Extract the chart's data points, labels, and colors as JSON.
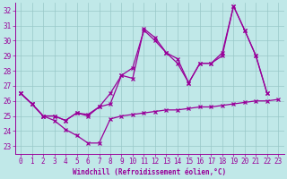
{
  "xlabel": "Windchill (Refroidissement éolien,°C)",
  "background_color": "#c0e8e8",
  "grid_color": "#98c8c8",
  "line_color": "#990099",
  "xlim": [
    -0.5,
    23.5
  ],
  "ylim": [
    22.5,
    32.5
  ],
  "xticks": [
    0,
    1,
    2,
    3,
    4,
    5,
    6,
    7,
    8,
    9,
    10,
    11,
    12,
    13,
    14,
    15,
    16,
    17,
    18,
    19,
    20,
    21,
    22,
    23
  ],
  "yticks": [
    23,
    24,
    25,
    26,
    27,
    28,
    29,
    30,
    31,
    32
  ],
  "series1_x": [
    0,
    1,
    2,
    3,
    4,
    5,
    6,
    7,
    8,
    9,
    10,
    11,
    12,
    13,
    14,
    15,
    16,
    17,
    18,
    19,
    20,
    21,
    22,
    23
  ],
  "series1_y": [
    26.5,
    25.8,
    25.0,
    24.7,
    24.1,
    23.7,
    23.2,
    23.2,
    24.8,
    25.0,
    25.1,
    25.2,
    25.3,
    25.4,
    25.4,
    25.5,
    25.6,
    25.6,
    25.7,
    25.8,
    25.9,
    26.0,
    26.0,
    26.1
  ],
  "series2_x": [
    0,
    1,
    2,
    3,
    4,
    5,
    6,
    7,
    8,
    9,
    10,
    11,
    12,
    13,
    14,
    15,
    16,
    17,
    18,
    19,
    20,
    21,
    22
  ],
  "series2_y": [
    26.5,
    25.8,
    25.0,
    25.0,
    24.7,
    25.2,
    25.0,
    25.6,
    26.5,
    27.7,
    28.2,
    30.7,
    30.0,
    29.2,
    28.5,
    27.2,
    28.5,
    28.5,
    29.0,
    32.3,
    30.7,
    29.0,
    26.5
  ],
  "series3_x": [
    0,
    1,
    2,
    3,
    4,
    5,
    6,
    7,
    8,
    9,
    10,
    11,
    12,
    13,
    14,
    15,
    16,
    17,
    18,
    19,
    20,
    21,
    22
  ],
  "series3_y": [
    26.5,
    25.8,
    25.0,
    25.0,
    24.7,
    25.2,
    25.1,
    25.6,
    25.8,
    27.7,
    27.5,
    30.8,
    30.2,
    29.2,
    28.8,
    27.2,
    28.5,
    28.5,
    29.2,
    32.3,
    30.7,
    29.0,
    26.5
  ],
  "tick_fontsize": 5.5,
  "xlabel_fontsize": 5.5
}
